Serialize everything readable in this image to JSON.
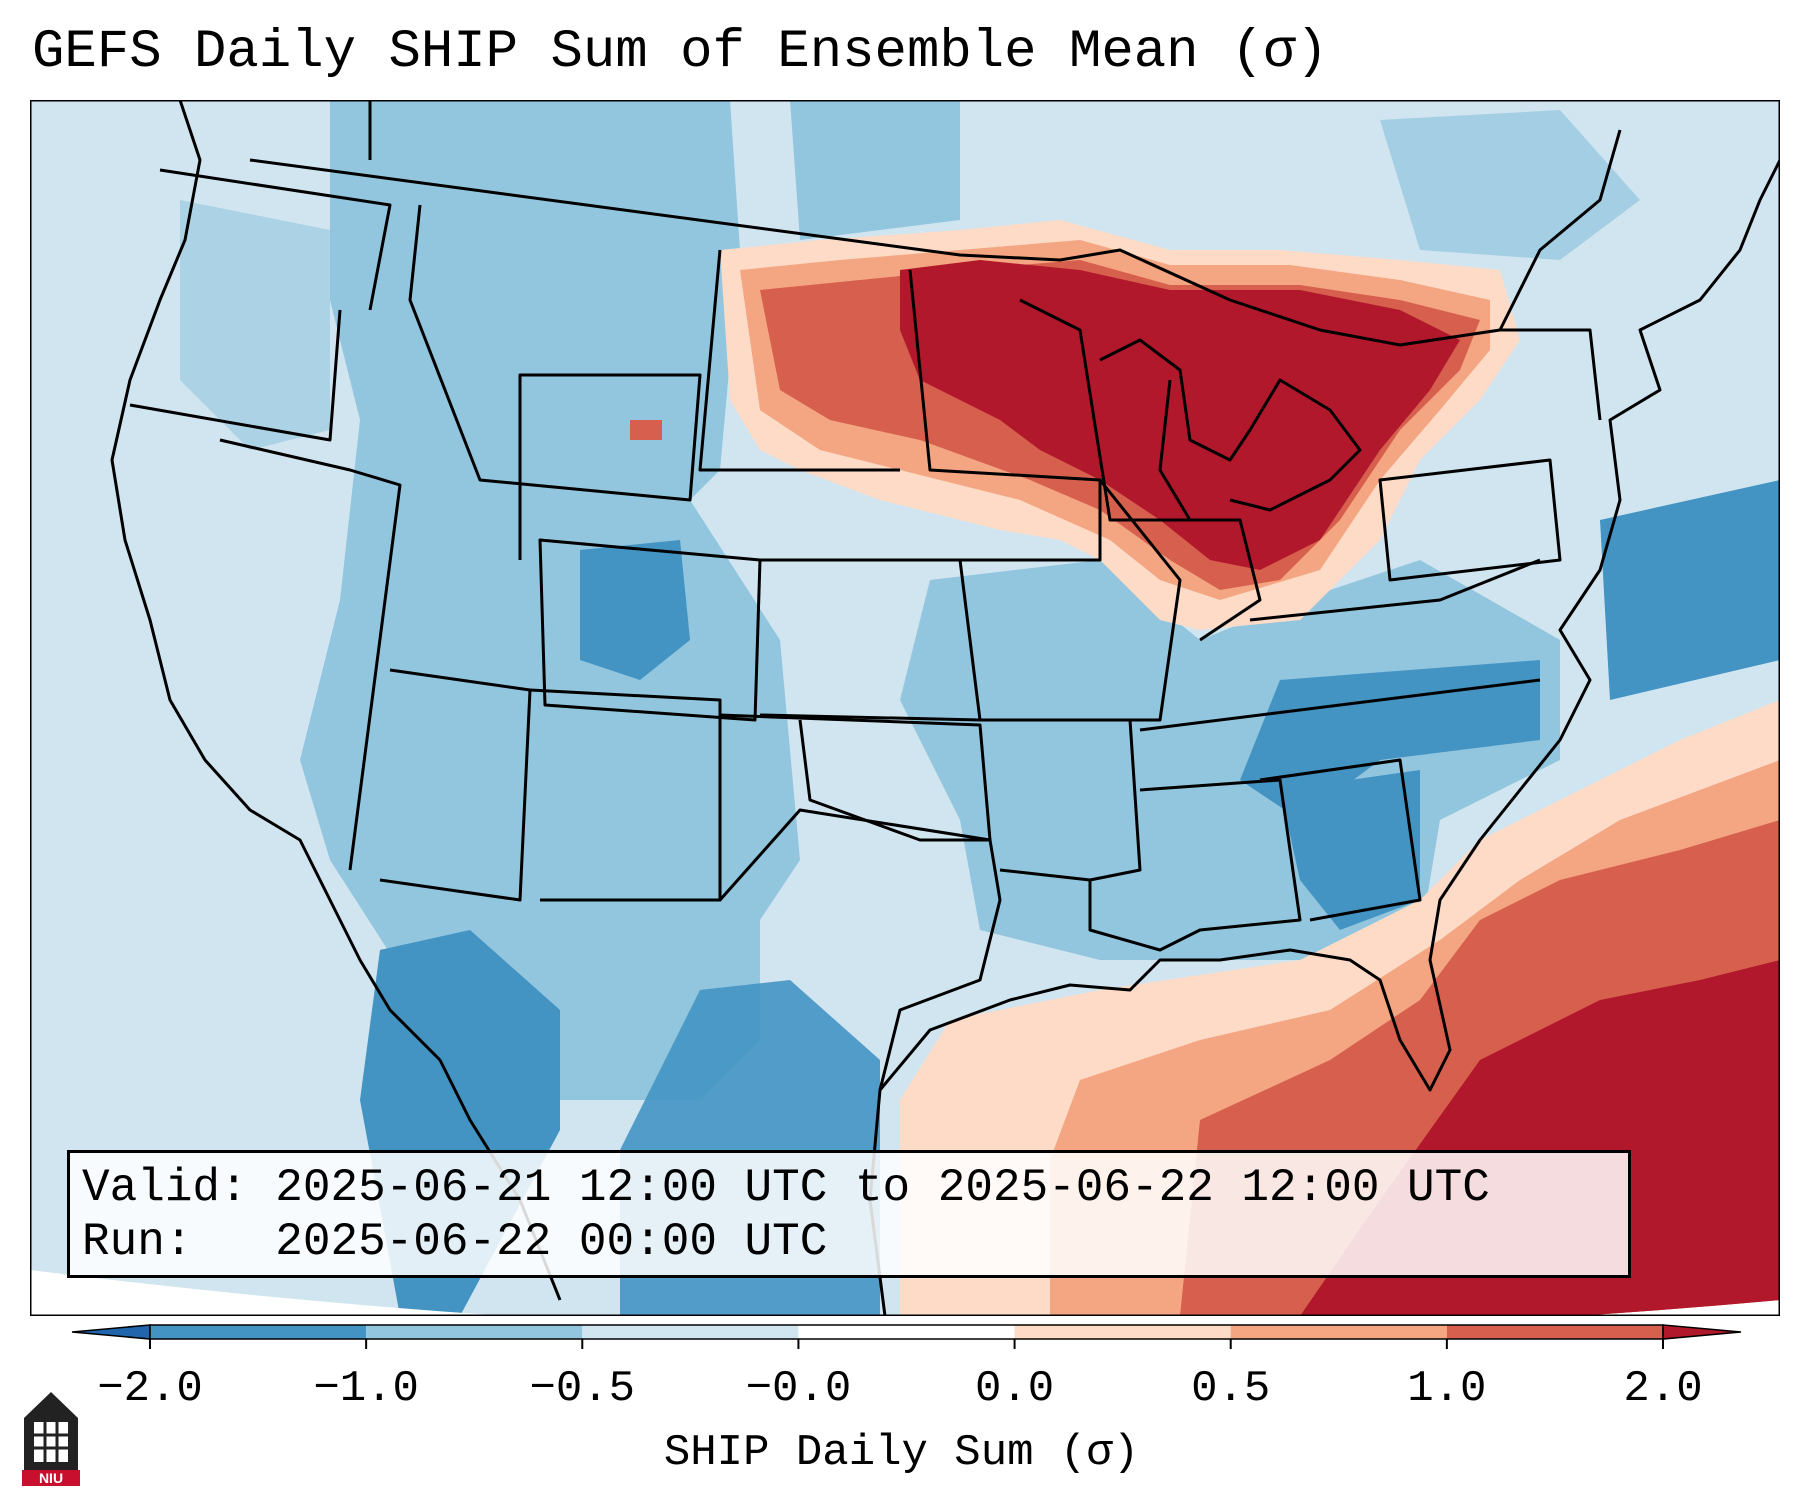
{
  "title": "GEFS Daily SHIP Sum of Ensemble Mean (σ)",
  "info": {
    "valid_label": "Valid:",
    "valid_value": "2025-06-21 12:00 UTC to 2025-06-22 12:00 UTC",
    "run_label": "Run:",
    "run_value": "2025-06-22 00:00 UTC"
  },
  "colorbar": {
    "label": "SHIP Daily Sum (σ)",
    "ticks": [
      "−2.0",
      "−1.0",
      "−0.5",
      "−0.0",
      "0.0",
      "0.5",
      "1.0",
      "2.0"
    ],
    "colors": [
      "#2166ac",
      "#4393c3",
      "#92c5de",
      "#d1e5f0",
      "#ffffff",
      "#fddbc7",
      "#f4a582",
      "#d6604d",
      "#b2182b"
    ]
  },
  "logo": {
    "text": "NIU"
  },
  "icons": {
    "logo": "niu-tower-icon"
  }
}
